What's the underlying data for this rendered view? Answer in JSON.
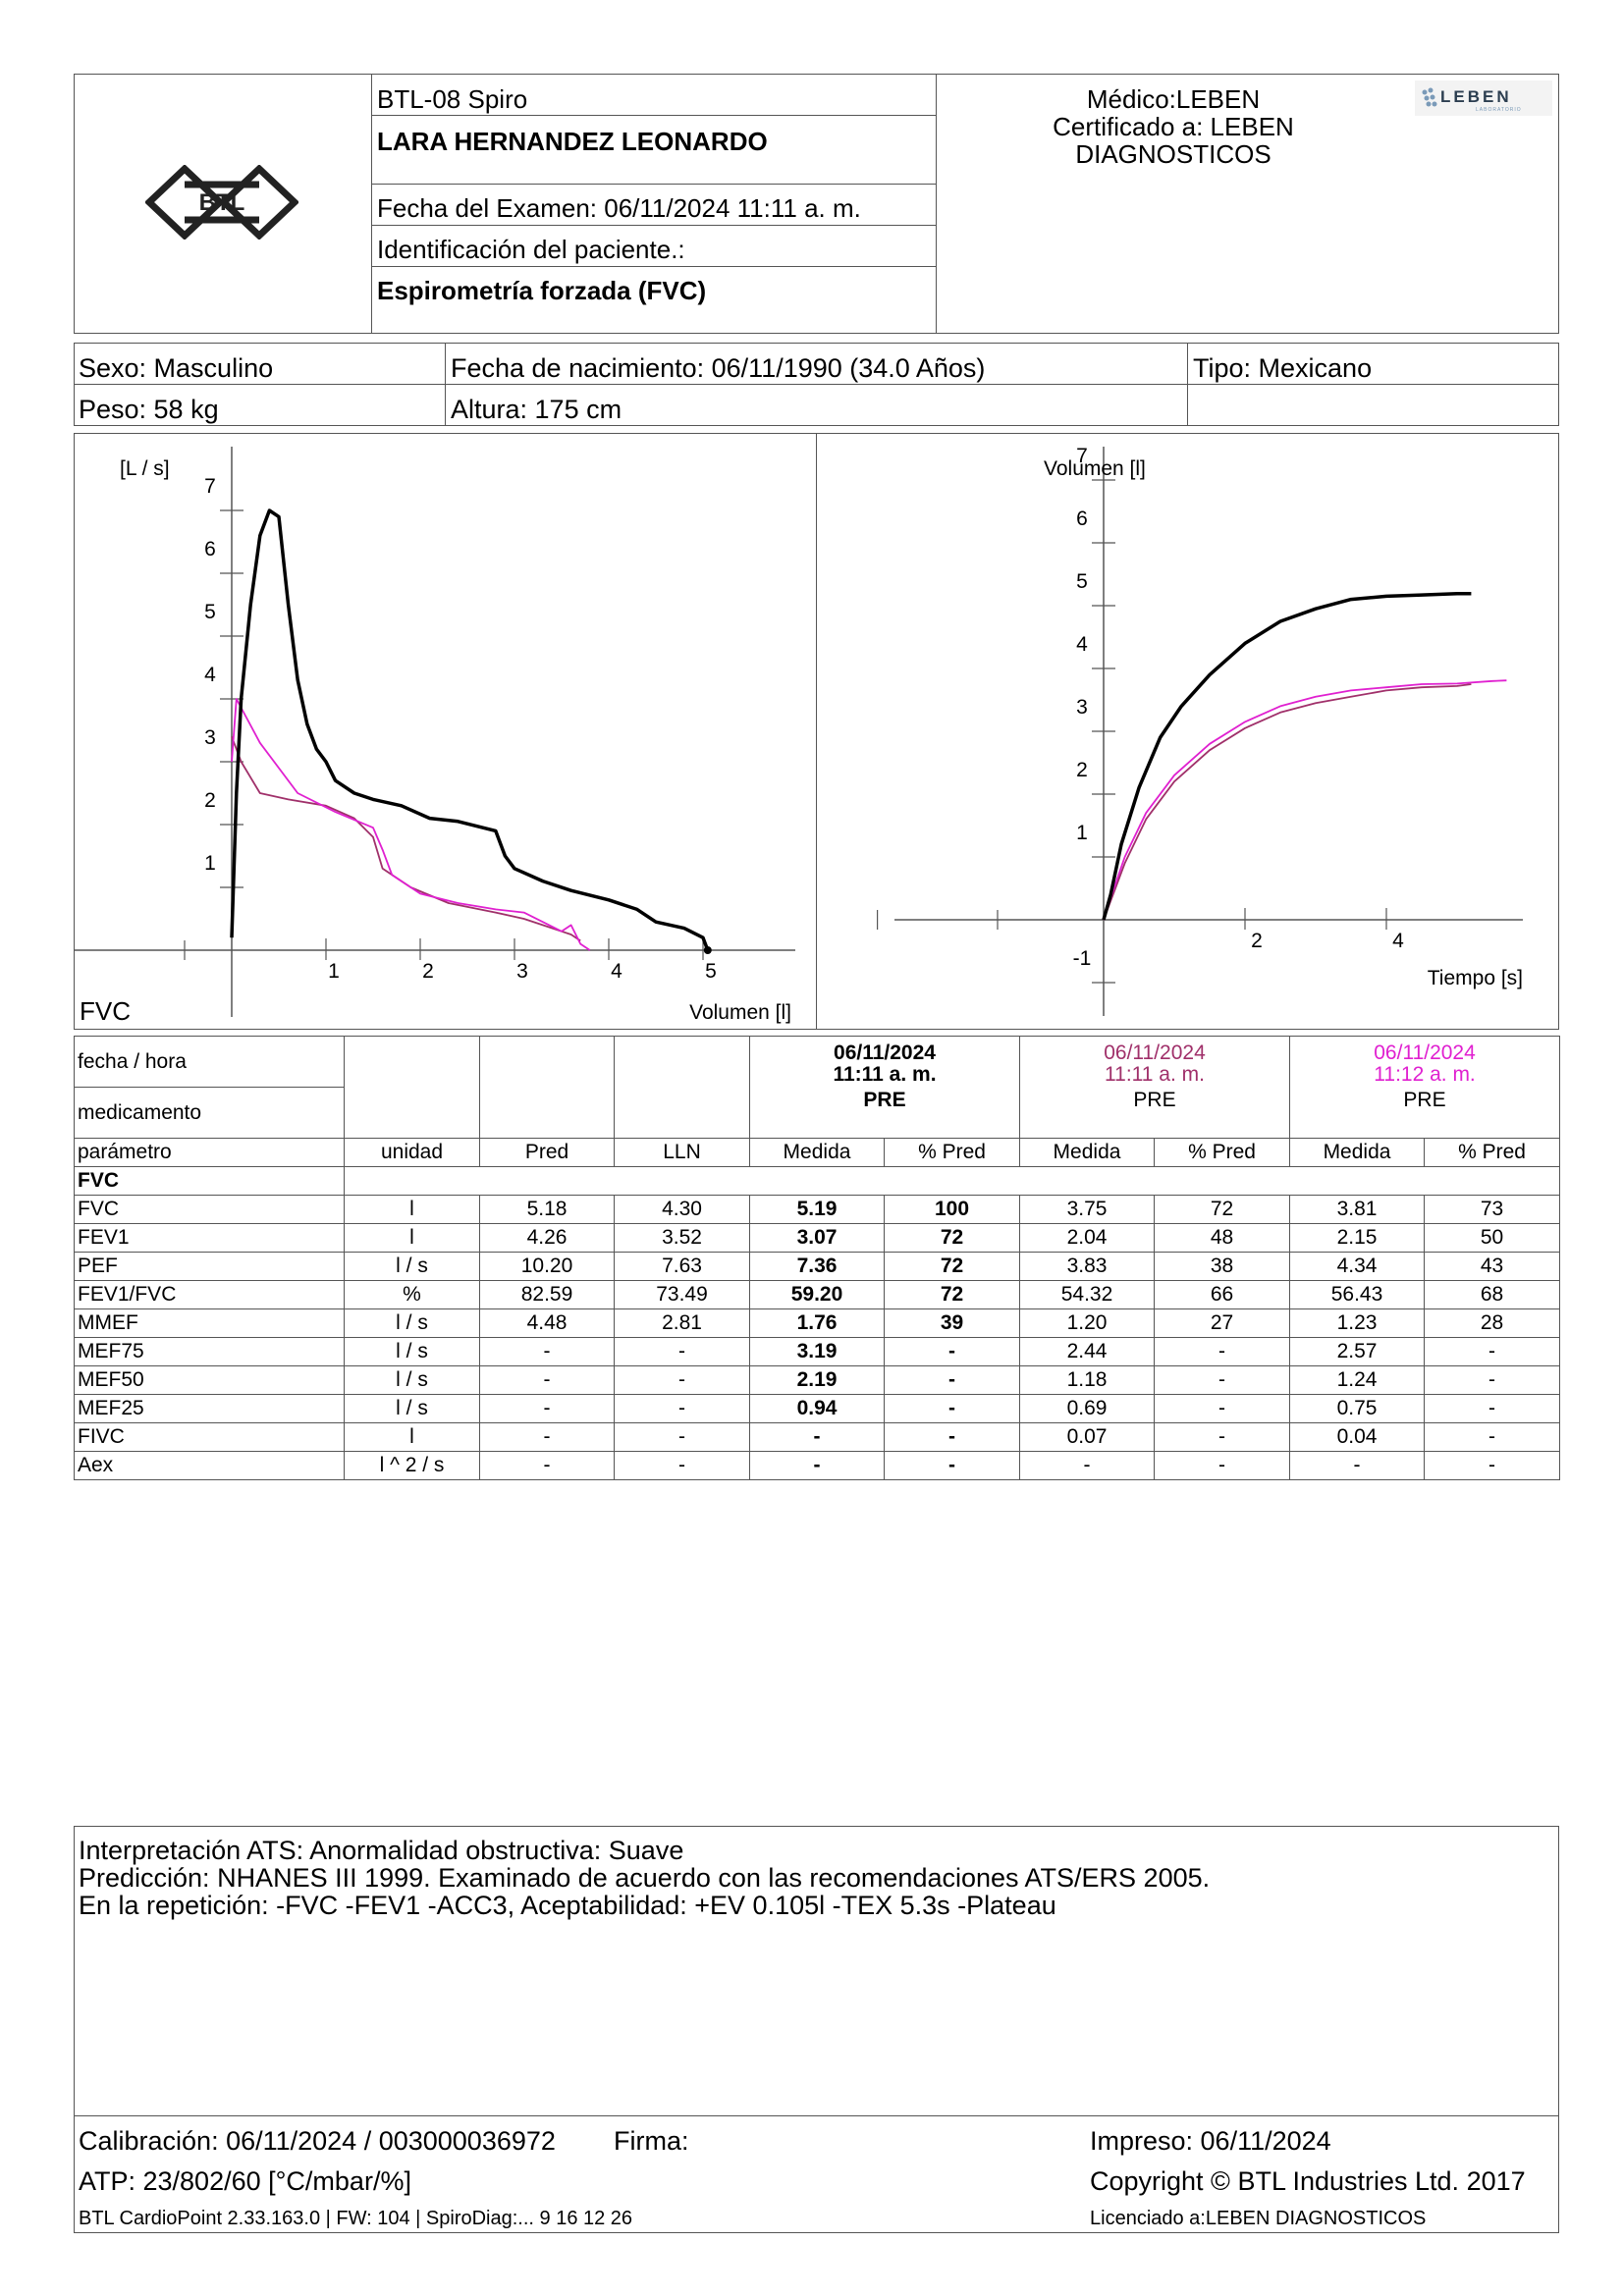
{
  "header": {
    "device": "BTL-08 Spiro",
    "patient_name": "LARA HERNANDEZ LEONARDO",
    "exam_date_label": "Fecha del Examen:  06/11/2024 11:11 a. m.",
    "patient_id_label": "Identificación del paciente.:",
    "test_type": "Espirometría forzada (FVC)",
    "physician": "Médico:LEBEN",
    "certified_line1": "Certificado a: LEBEN",
    "certified_line2": "DIAGNOSTICOS",
    "lab_logo_text": "LEBEN",
    "lab_logo_sub": "LABORATORIO",
    "brand_logo_text": "BTL"
  },
  "patient": {
    "sex": "Sexo: Masculino",
    "dob": "Fecha de nacimiento: 06/11/1990 (34.0 Años)",
    "type": "Tipo: Mexicano",
    "weight": "Peso: 58 kg",
    "height": "Altura: 175 cm"
  },
  "chart_data": [
    {
      "type": "line",
      "title": "FVC",
      "xlabel": "Volumen [l]",
      "ylabel": "[L / s]",
      "xlim": [
        -0.5,
        5.8
      ],
      "ylim": [
        -1,
        7.6
      ],
      "xticks": [
        "1",
        "2",
        "3",
        "4",
        "5"
      ],
      "yticks": [
        "1",
        "2",
        "3",
        "4",
        "5",
        "6",
        "7"
      ],
      "series": [
        {
          "color": "#000000",
          "x": [
            0,
            0.05,
            0.1,
            0.2,
            0.3,
            0.4,
            0.5,
            0.6,
            0.7,
            0.8,
            0.9,
            1.0,
            1.1,
            1.3,
            1.5,
            1.8,
            2.1,
            2.4,
            2.8,
            2.9,
            3.0,
            3.3,
            3.6,
            4.0,
            4.3,
            4.5,
            4.8,
            5.0,
            5.05
          ],
          "y": [
            0.2,
            2.5,
            4.0,
            5.5,
            6.6,
            7.0,
            6.9,
            5.5,
            4.3,
            3.6,
            3.2,
            3.0,
            2.7,
            2.5,
            2.4,
            2.3,
            2.1,
            2.05,
            1.9,
            1.5,
            1.3,
            1.1,
            0.95,
            0.8,
            0.65,
            0.45,
            0.35,
            0.2,
            0.0
          ]
        },
        {
          "color": "#a0306a",
          "x": [
            0,
            0.1,
            0.3,
            0.6,
            1.0,
            1.3,
            1.5,
            1.6,
            1.9,
            2.3,
            2.8,
            3.1,
            3.3,
            3.5,
            3.6,
            3.7
          ],
          "y": [
            3.4,
            3.0,
            2.5,
            2.4,
            2.3,
            2.1,
            1.8,
            1.3,
            1.0,
            0.75,
            0.6,
            0.5,
            0.4,
            0.3,
            0.25,
            0.15
          ]
        },
        {
          "color": "#e020d0",
          "x": [
            0,
            0.05,
            0.3,
            0.7,
            1.1,
            1.5,
            1.6,
            1.7,
            2.0,
            2.4,
            2.8,
            3.1,
            3.3,
            3.5,
            3.6,
            3.7,
            3.8
          ],
          "y": [
            3.0,
            4.0,
            3.3,
            2.5,
            2.2,
            1.95,
            1.6,
            1.2,
            0.9,
            0.75,
            0.65,
            0.6,
            0.45,
            0.3,
            0.4,
            0.1,
            0.0
          ]
        }
      ]
    },
    {
      "type": "line",
      "xlabel": "Tiempo [s]",
      "ylabel": "Volumen [l]",
      "xlim": [
        -3.2,
        6.0
      ],
      "ylim": [
        -1,
        7.6
      ],
      "xticks": [
        "2",
        "4"
      ],
      "yticks": [
        "-1",
        "1",
        "2",
        "3",
        "4",
        "5",
        "6",
        "7"
      ],
      "series": [
        {
          "color": "#000000",
          "x": [
            0,
            0.1,
            0.25,
            0.5,
            0.8,
            1.1,
            1.5,
            2.0,
            2.5,
            3.0,
            3.5,
            4.0,
            4.5,
            5.0,
            5.2
          ],
          "y": [
            0,
            0.4,
            1.2,
            2.1,
            2.9,
            3.4,
            3.9,
            4.4,
            4.75,
            4.95,
            5.1,
            5.15,
            5.17,
            5.19,
            5.19
          ]
        },
        {
          "color": "#a0306a",
          "x": [
            0,
            0.1,
            0.3,
            0.6,
            1.0,
            1.5,
            2.0,
            2.5,
            3.0,
            3.5,
            4.0,
            4.5,
            5.0,
            5.2
          ],
          "y": [
            0,
            0.3,
            0.9,
            1.6,
            2.2,
            2.7,
            3.05,
            3.3,
            3.45,
            3.55,
            3.65,
            3.7,
            3.72,
            3.75
          ]
        },
        {
          "color": "#e020d0",
          "x": [
            0,
            0.1,
            0.3,
            0.6,
            1.0,
            1.5,
            2.0,
            2.5,
            3.0,
            3.5,
            4.0,
            4.5,
            5.0,
            5.5,
            5.7
          ],
          "y": [
            0,
            0.35,
            1.0,
            1.7,
            2.3,
            2.8,
            3.15,
            3.4,
            3.55,
            3.65,
            3.7,
            3.75,
            3.76,
            3.8,
            3.81
          ]
        }
      ]
    }
  ],
  "results": {
    "fecha_label": "fecha / hora",
    "medicamento_label": "medicamento",
    "sessions": [
      {
        "date": "06/11/2024",
        "time": "11:11 a. m.",
        "med": "PRE"
      },
      {
        "date": "06/11/2024",
        "time": "11:11 a. m.",
        "med": "PRE"
      },
      {
        "date": "06/11/2024",
        "time": "11:12 a. m.",
        "med": "PRE"
      }
    ],
    "columns": [
      "parámetro",
      "unidad",
      "Pred",
      "LLN",
      "Medida",
      "% Pred",
      "Medida",
      "% Pred",
      "Medida",
      "% Pred"
    ],
    "section": "FVC",
    "rows": [
      [
        "FVC",
        "l",
        "5.18",
        "4.30",
        "5.19",
        "100",
        "3.75",
        "72",
        "3.81",
        "73"
      ],
      [
        "FEV1",
        "l",
        "4.26",
        "3.52",
        "3.07",
        "72",
        "2.04",
        "48",
        "2.15",
        "50"
      ],
      [
        "PEF",
        "l / s",
        "10.20",
        "7.63",
        "7.36",
        "72",
        "3.83",
        "38",
        "4.34",
        "43"
      ],
      [
        "FEV1/FVC",
        "%",
        "82.59",
        "73.49",
        "59.20",
        "72",
        "54.32",
        "66",
        "56.43",
        "68"
      ],
      [
        "MMEF",
        "l / s",
        "4.48",
        "2.81",
        "1.76",
        "39",
        "1.20",
        "27",
        "1.23",
        "28"
      ],
      [
        "MEF75",
        "l / s",
        "-",
        "-",
        "3.19",
        "-",
        "2.44",
        "-",
        "2.57",
        "-"
      ],
      [
        "MEF50",
        "l / s",
        "-",
        "-",
        "2.19",
        "-",
        "1.18",
        "-",
        "1.24",
        "-"
      ],
      [
        "MEF25",
        "l / s",
        "-",
        "-",
        "0.94",
        "-",
        "0.69",
        "-",
        "0.75",
        "-"
      ],
      [
        "FIVC",
        "l",
        "-",
        "-",
        "-",
        "-",
        "0.07",
        "-",
        "0.04",
        "-"
      ],
      [
        "Aex",
        "l ^ 2 / s",
        "-",
        "-",
        "-",
        "-",
        "-",
        "-",
        "-",
        "-"
      ]
    ]
  },
  "interpretation": {
    "line1": "Interpretación ATS: Anormalidad obstructiva: Suave",
    "line2": "Predicción: NHANES III 1999. Examinado de acuerdo con las recomendaciones ATS/ERS 2005.",
    "line3": "En la repetición: -FVC -FEV1 -ACC3, Aceptabilidad: +EV 0.105l -TEX 5.3s -Plateau"
  },
  "footer": {
    "calibration": "Calibración: 06/11/2024 / 003000036972",
    "signature": "Firma:",
    "printed": "Impreso: 06/11/2024",
    "atp": "ATP: 23/802/60 [°C/mbar/%]",
    "copyright": "Copyright © BTL Industries Ltd. 2017",
    "software": "BTL CardioPoint 2.33.163.0 | FW: 104 | SpiroDiag:... 9 16 12 26",
    "licensed": "Licenciado a:LEBEN DIAGNOSTICOS"
  }
}
